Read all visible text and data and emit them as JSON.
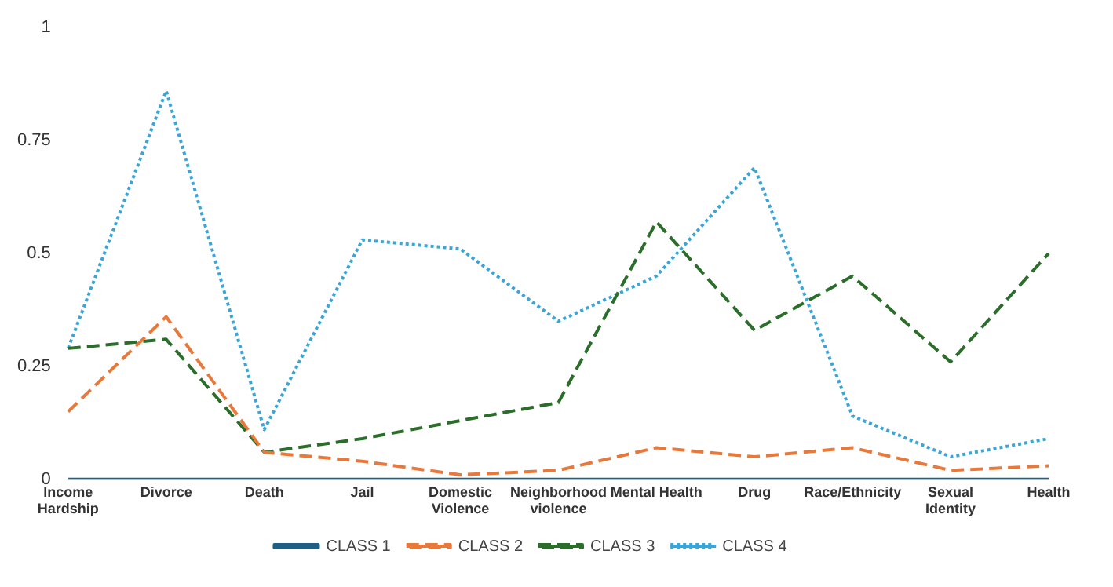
{
  "chart_data": {
    "type": "line",
    "categories": [
      "Income Hardship",
      "Divorce",
      "Death",
      "Jail",
      "Domestic Violence",
      "Neighborhood violence",
      "Mental Health",
      "Drug",
      "Race/Ethnicity",
      "Sexual Identity",
      "Health"
    ],
    "series": [
      {
        "name": "CLASS 1",
        "color": "#1f5f84",
        "line_style": "solid",
        "values": [
          0,
          0,
          0,
          0,
          0,
          0,
          0,
          0,
          0,
          0,
          0
        ]
      },
      {
        "name": "CLASS 2",
        "color": "#e8793a",
        "line_style": "dashed",
        "values": [
          0.15,
          0.36,
          0.06,
          0.04,
          0.01,
          0.02,
          0.07,
          0.05,
          0.07,
          0.02,
          0.03
        ]
      },
      {
        "name": "CLASS 3",
        "color": "#2b6e2b",
        "line_style": "dashed",
        "values": [
          0.29,
          0.31,
          0.06,
          0.09,
          0.13,
          0.17,
          0.57,
          0.33,
          0.45,
          0.26,
          0.5
        ]
      },
      {
        "name": "CLASS 4",
        "color": "#3aa6d8",
        "line_style": "dotted",
        "values": [
          0.29,
          0.86,
          0.11,
          0.53,
          0.51,
          0.35,
          0.45,
          0.69,
          0.14,
          0.05,
          0.09
        ]
      }
    ],
    "ylim": [
      0,
      1
    ],
    "yticks": [
      0,
      0.25,
      0.5,
      0.75,
      1
    ],
    "grid": false,
    "legend": "bottom",
    "marker": "none"
  }
}
